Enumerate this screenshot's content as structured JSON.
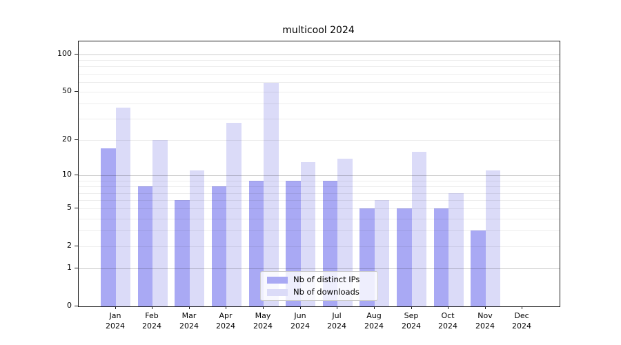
{
  "title": "multicool 2024",
  "chart_data": {
    "type": "bar",
    "title": "multicool 2024",
    "categories": [
      "Jan",
      "Feb",
      "Mar",
      "Apr",
      "May",
      "Jun",
      "Jul",
      "Aug",
      "Sep",
      "Oct",
      "Nov",
      "Dec"
    ],
    "year": "2024",
    "series": [
      {
        "name": "Nb of distinct IPs",
        "color": "#a9a9f4",
        "values": [
          17,
          8,
          6,
          8,
          9,
          9,
          9,
          5,
          5,
          5,
          3,
          0
        ]
      },
      {
        "name": "Nb of downloads",
        "color": "#dbdbf8",
        "values": [
          37,
          20,
          11,
          28,
          59,
          13,
          14,
          6,
          16,
          7,
          11,
          0
        ]
      }
    ],
    "y_ticks": [
      0,
      1,
      2,
      5,
      10,
      20,
      50,
      100
    ],
    "grid_minor_values": [
      2,
      3,
      4,
      5,
      6,
      7,
      8,
      9,
      20,
      30,
      40,
      50,
      60,
      70,
      80,
      90
    ],
    "grid_major_values": [
      1,
      10,
      100
    ],
    "scale": "log10(1+y)",
    "ylim": [
      0,
      124
    ],
    "grid": "on",
    "legend_position": "lower center",
    "axis_color": "#1a1a1a"
  }
}
